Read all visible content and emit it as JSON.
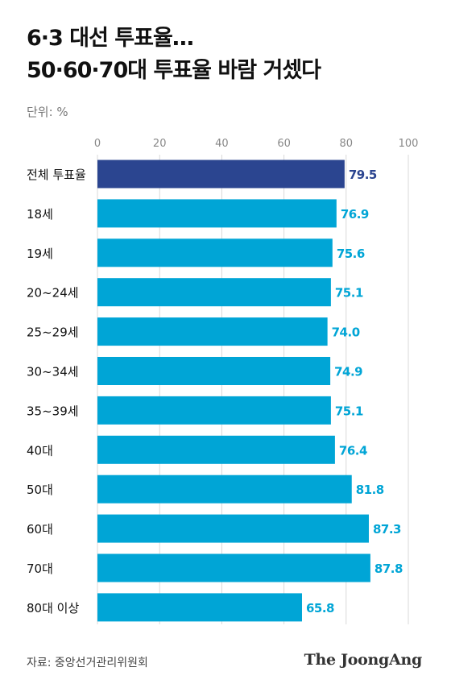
{
  "header": {
    "title_line1": "6·3 대선 투표율…",
    "title_line2": "50·60·70대 투표율 바람 거셌다",
    "unit": "단위: %"
  },
  "footer": {
    "source": "자료: 중앙선거관리위원회",
    "brand": "The JoongAng"
  },
  "colors": {
    "highlight": "#2b4590",
    "bar": "#00a5d6",
    "highlight_label": "#2b4590",
    "bar_label": "#00a5d6"
  },
  "chart_data": {
    "type": "bar",
    "orientation": "horizontal",
    "title": "6·3 대선 투표율… 50·60·70대 투표율 바람 거셌다",
    "unit": "%",
    "xlim": [
      0,
      100
    ],
    "ticks": [
      0,
      20,
      40,
      60,
      80,
      100
    ],
    "grid": true,
    "categories": [
      "전체 투표율",
      "18세",
      "19세",
      "20~24세",
      "25~29세",
      "30~34세",
      "35~39세",
      "40대",
      "50대",
      "60대",
      "70대",
      "80대 이상"
    ],
    "values": [
      79.5,
      76.9,
      75.6,
      75.1,
      74.0,
      74.9,
      75.1,
      76.4,
      81.8,
      87.3,
      87.8,
      65.8
    ],
    "value_labels": [
      "79.5",
      "76.9",
      "75.6",
      "75.1",
      "74.0",
      "74.9",
      "75.1",
      "76.4",
      "81.8",
      "87.3",
      "87.8",
      "65.8"
    ],
    "highlight_index": 0
  }
}
